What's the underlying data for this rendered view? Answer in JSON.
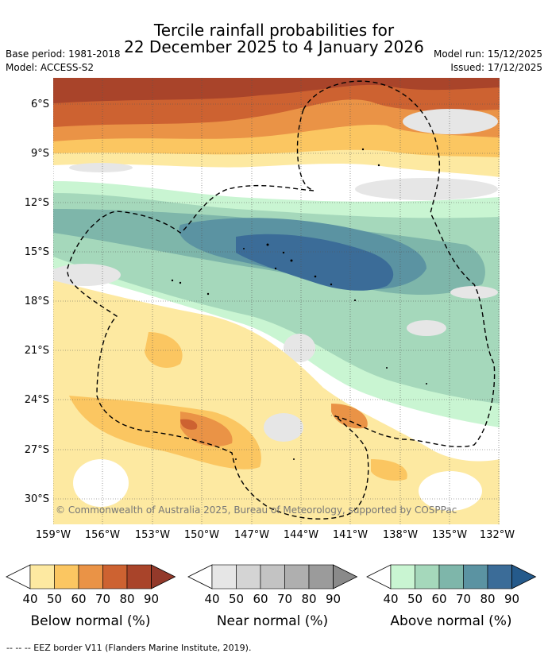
{
  "title_line1": "Tercile rainfall probabilities for",
  "title_line2": "22 December 2025 to 4 January 2026",
  "base_period": "Base period: 1981-2018",
  "model": "Model: ACCESS-S2",
  "model_run": "Model run: 15/12/2025",
  "issued": "Issued: 17/12/2025",
  "copyright": "© Commonwealth of Australia 2025, Bureau of Meteorology, supported by COSPPac",
  "lat_labels": [
    "6°S",
    "9°S",
    "12°S",
    "15°S",
    "18°S",
    "21°S",
    "24°S",
    "27°S",
    "30°S"
  ],
  "lon_labels": [
    "159°W",
    "156°W",
    "153°W",
    "150°W",
    "147°W",
    "144°W",
    "141°W",
    "138°W",
    "135°W",
    "132°W"
  ],
  "colorbars": {
    "below": {
      "title": "Below normal (%)",
      "ticks": [
        "40",
        "50",
        "60",
        "70",
        "80",
        "90"
      ],
      "colors": [
        "#ffffff",
        "#fde9a1",
        "#fbc661",
        "#ea9346",
        "#cd6231",
        "#a9442a",
        "#93392a"
      ]
    },
    "near": {
      "title": "Near normal (%)",
      "ticks": [
        "40",
        "50",
        "60",
        "70",
        "80",
        "90"
      ],
      "colors": [
        "#ffffff",
        "#e6e6e6",
        "#d4d4d4",
        "#c3c3c3",
        "#afafaf",
        "#9b9b9b",
        "#8a8a8a"
      ]
    },
    "above": {
      "title": "Above normal (%)",
      "ticks": [
        "40",
        "50",
        "60",
        "70",
        "80",
        "90"
      ],
      "colors": [
        "#ffffff",
        "#c9f5d2",
        "#a5d8bb",
        "#7eb6aa",
        "#5b93a2",
        "#3b6c98",
        "#255a8b"
      ]
    }
  },
  "footer": "--  --  -- EEZ border V11 (Flanders Marine Institute, 2019)."
}
